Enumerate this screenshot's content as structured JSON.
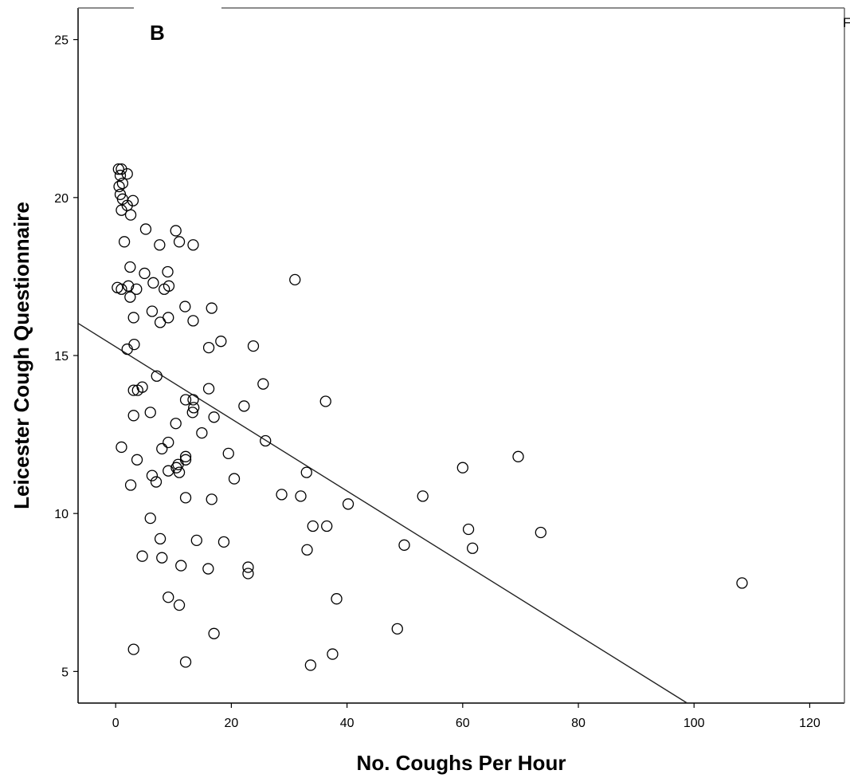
{
  "panel_label": "B",
  "corner_label": "F",
  "chart_data": {
    "type": "scatter",
    "xlabel": "No. Coughs Per Hour",
    "ylabel": "Leicester Cough Questionnaire",
    "xlim": [
      -6.5,
      126
    ],
    "ylim": [
      4,
      26
    ],
    "x_ticks": [
      0,
      20,
      40,
      60,
      80,
      100,
      120
    ],
    "y_ticks": [
      5,
      10,
      15,
      20,
      25
    ],
    "grid": false,
    "fit_line": {
      "x": [
        -6.5,
        98.8
      ],
      "y": [
        16.02,
        4.0
      ]
    },
    "points": [
      {
        "x": 0.5,
        "y": 20.9
      },
      {
        "x": 1.0,
        "y": 20.9
      },
      {
        "x": 0.8,
        "y": 20.7
      },
      {
        "x": 2.0,
        "y": 20.75
      },
      {
        "x": 0.6,
        "y": 20.35
      },
      {
        "x": 1.2,
        "y": 20.45
      },
      {
        "x": 0.8,
        "y": 20.1
      },
      {
        "x": 1.2,
        "y": 19.95
      },
      {
        "x": 3.0,
        "y": 19.9
      },
      {
        "x": 2.0,
        "y": 19.75
      },
      {
        "x": 1.0,
        "y": 19.6
      },
      {
        "x": 2.6,
        "y": 19.45
      },
      {
        "x": 5.2,
        "y": 19.0
      },
      {
        "x": 10.4,
        "y": 18.95
      },
      {
        "x": 1.5,
        "y": 18.6
      },
      {
        "x": 11.0,
        "y": 18.6
      },
      {
        "x": 7.6,
        "y": 18.5
      },
      {
        "x": 13.4,
        "y": 18.5
      },
      {
        "x": 2.5,
        "y": 17.8
      },
      {
        "x": 5.0,
        "y": 17.6
      },
      {
        "x": 9.0,
        "y": 17.65
      },
      {
        "x": 6.5,
        "y": 17.3
      },
      {
        "x": 0.3,
        "y": 17.15
      },
      {
        "x": 1.0,
        "y": 17.1
      },
      {
        "x": 2.2,
        "y": 17.2
      },
      {
        "x": 3.6,
        "y": 17.1
      },
      {
        "x": 8.4,
        "y": 17.1
      },
      {
        "x": 9.2,
        "y": 17.2
      },
      {
        "x": 2.5,
        "y": 16.85
      },
      {
        "x": 31.0,
        "y": 17.4
      },
      {
        "x": 12.0,
        "y": 16.55
      },
      {
        "x": 16.6,
        "y": 16.5
      },
      {
        "x": 6.3,
        "y": 16.4
      },
      {
        "x": 3.1,
        "y": 16.2
      },
      {
        "x": 9.1,
        "y": 16.2
      },
      {
        "x": 7.7,
        "y": 16.05
      },
      {
        "x": 13.4,
        "y": 16.1
      },
      {
        "x": 3.2,
        "y": 15.35
      },
      {
        "x": 2.0,
        "y": 15.2
      },
      {
        "x": 16.1,
        "y": 15.25
      },
      {
        "x": 18.2,
        "y": 15.45
      },
      {
        "x": 23.8,
        "y": 15.3
      },
      {
        "x": 7.1,
        "y": 14.35
      },
      {
        "x": 25.5,
        "y": 14.1
      },
      {
        "x": 4.6,
        "y": 14.0
      },
      {
        "x": 3.1,
        "y": 13.9
      },
      {
        "x": 3.8,
        "y": 13.9
      },
      {
        "x": 16.1,
        "y": 13.95
      },
      {
        "x": 12.1,
        "y": 13.6
      },
      {
        "x": 13.4,
        "y": 13.6
      },
      {
        "x": 13.5,
        "y": 13.35
      },
      {
        "x": 36.3,
        "y": 13.55
      },
      {
        "x": 22.2,
        "y": 13.4
      },
      {
        "x": 13.3,
        "y": 13.2
      },
      {
        "x": 6.0,
        "y": 13.2
      },
      {
        "x": 3.1,
        "y": 13.1
      },
      {
        "x": 17.0,
        "y": 13.05
      },
      {
        "x": 10.4,
        "y": 12.85
      },
      {
        "x": 14.9,
        "y": 12.55
      },
      {
        "x": 25.9,
        "y": 12.3
      },
      {
        "x": 9.1,
        "y": 12.25
      },
      {
        "x": 1.0,
        "y": 12.1
      },
      {
        "x": 8.0,
        "y": 12.05
      },
      {
        "x": 19.5,
        "y": 11.9
      },
      {
        "x": 12.1,
        "y": 11.8
      },
      {
        "x": 69.6,
        "y": 11.8
      },
      {
        "x": 3.7,
        "y": 11.7
      },
      {
        "x": 12.1,
        "y": 11.7
      },
      {
        "x": 10.8,
        "y": 11.55
      },
      {
        "x": 10.5,
        "y": 11.45
      },
      {
        "x": 60.0,
        "y": 11.45
      },
      {
        "x": 9.1,
        "y": 11.35
      },
      {
        "x": 11.0,
        "y": 11.3
      },
      {
        "x": 33.0,
        "y": 11.3
      },
      {
        "x": 6.3,
        "y": 11.2
      },
      {
        "x": 20.5,
        "y": 11.1
      },
      {
        "x": 7.0,
        "y": 11.0
      },
      {
        "x": 2.6,
        "y": 10.9
      },
      {
        "x": 28.7,
        "y": 10.6
      },
      {
        "x": 32.0,
        "y": 10.55
      },
      {
        "x": 53.1,
        "y": 10.55
      },
      {
        "x": 12.1,
        "y": 10.5
      },
      {
        "x": 16.6,
        "y": 10.45
      },
      {
        "x": 40.2,
        "y": 10.3
      },
      {
        "x": 6.0,
        "y": 9.85
      },
      {
        "x": 34.1,
        "y": 9.6
      },
      {
        "x": 36.5,
        "y": 9.6
      },
      {
        "x": 61.0,
        "y": 9.5
      },
      {
        "x": 73.5,
        "y": 9.4
      },
      {
        "x": 7.7,
        "y": 9.2
      },
      {
        "x": 14.0,
        "y": 9.15
      },
      {
        "x": 18.7,
        "y": 9.1
      },
      {
        "x": 49.9,
        "y": 9.0
      },
      {
        "x": 33.1,
        "y": 8.85
      },
      {
        "x": 61.7,
        "y": 8.9
      },
      {
        "x": 4.6,
        "y": 8.65
      },
      {
        "x": 8.0,
        "y": 8.6
      },
      {
        "x": 11.3,
        "y": 8.35
      },
      {
        "x": 16.0,
        "y": 8.25
      },
      {
        "x": 22.9,
        "y": 8.3
      },
      {
        "x": 22.9,
        "y": 8.1
      },
      {
        "x": 9.1,
        "y": 7.35
      },
      {
        "x": 38.2,
        "y": 7.3
      },
      {
        "x": 11.0,
        "y": 7.1
      },
      {
        "x": 108.3,
        "y": 7.8
      },
      {
        "x": 17.0,
        "y": 6.2
      },
      {
        "x": 48.7,
        "y": 6.35
      },
      {
        "x": 3.1,
        "y": 5.7
      },
      {
        "x": 37.5,
        "y": 5.55
      },
      {
        "x": 12.1,
        "y": 5.3
      },
      {
        "x": 33.7,
        "y": 5.2
      }
    ]
  }
}
